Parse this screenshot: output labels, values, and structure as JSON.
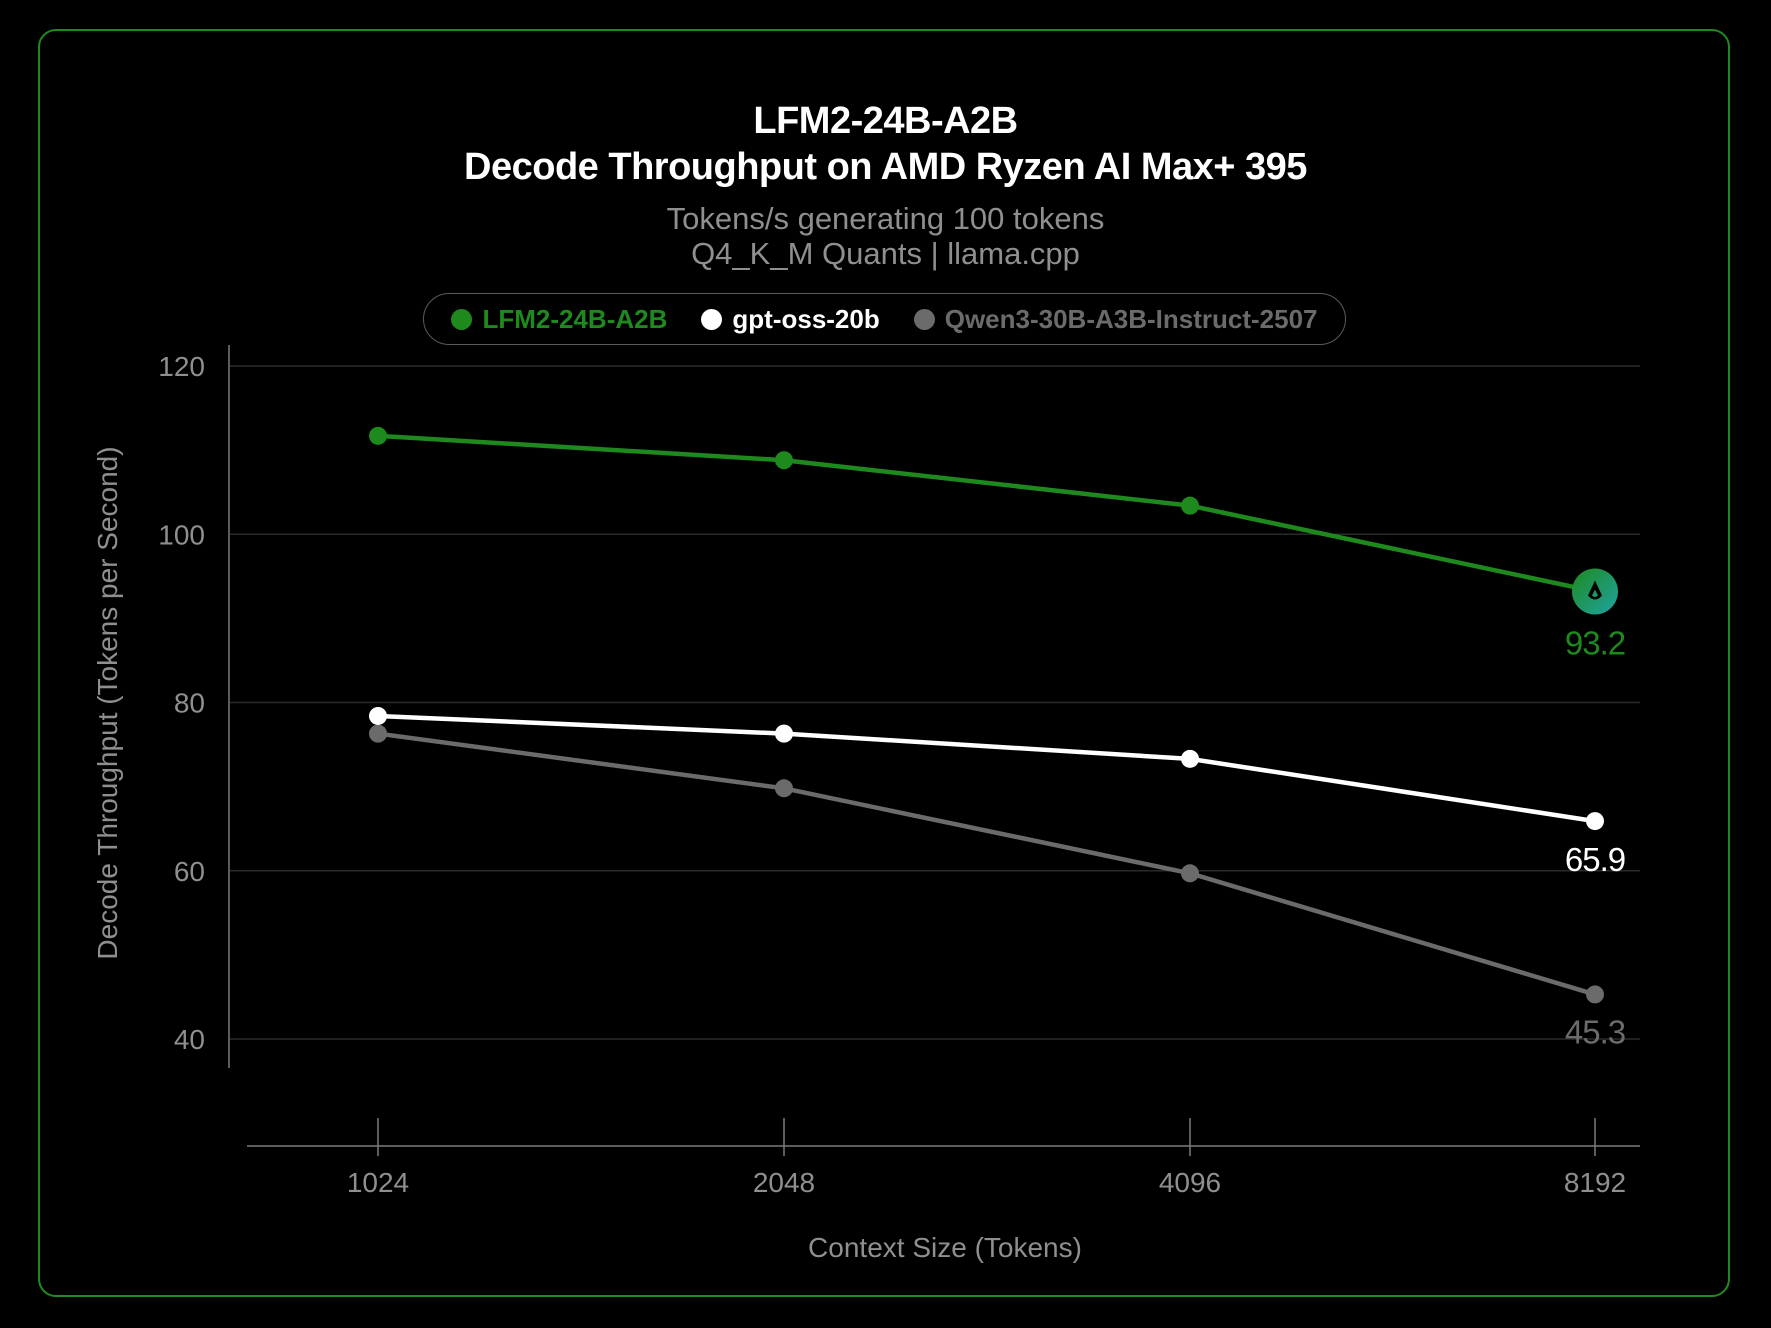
{
  "chart_data": {
    "type": "line",
    "title": "LFM2-24B-A2B",
    "title_line2": "Decode Throughput on AMD Ryzen AI Max+ 395",
    "subtitle": "Tokens/s generating 100 tokens",
    "subtitle_line2": "Q4_K_M Quants | llama.cpp",
    "xlabel": "Context Size (Tokens)",
    "ylabel": "Decode Throughput (Tokens per Second)",
    "categories": [
      "1024",
      "2048",
      "4096",
      "8192"
    ],
    "ylim": [
      40,
      120
    ],
    "yticks": [
      40,
      60,
      80,
      100,
      120
    ],
    "grid": "horizontal",
    "legend_position": "top-center",
    "series": [
      {
        "name": "LFM2-24B-A2B",
        "color": "#1e8a1e",
        "values": [
          111.7,
          108.8,
          103.4,
          93.2
        ],
        "end_label": "93.2",
        "end_marker": "logo-badge"
      },
      {
        "name": "gpt-oss-20b",
        "color": "#ffffff",
        "values": [
          78.4,
          76.3,
          73.3,
          65.9
        ],
        "end_label": "65.9"
      },
      {
        "name": "Qwen3-30B-A3B-Instruct-2507",
        "color": "#6b6b6b",
        "values": [
          76.3,
          69.8,
          59.7,
          45.3
        ],
        "end_label": "45.3"
      }
    ]
  },
  "colors": {
    "background": "#000000",
    "frame": "#1f8a1f",
    "grid": "#2a2a2a",
    "axis": "#7a7a7a",
    "tick_text": "#8f8f8f",
    "badge_gradient_start": "#1e8a1e",
    "badge_gradient_end": "#1fa3a3"
  }
}
